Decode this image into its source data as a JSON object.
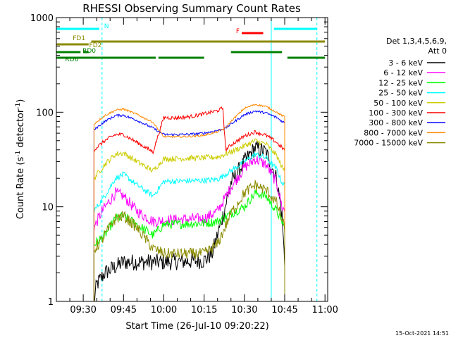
{
  "chart_data": {
    "type": "line",
    "title": "RHESSI Observing Summary Count Rates",
    "xlabel": "Start Time (26-Jul-10 09:20:22)",
    "ylabel_parts": [
      "Count Rate (s",
      "-1",
      " detector",
      "-1",
      ")"
    ],
    "y_scale": "log",
    "ylim": [
      1,
      1000
    ],
    "y_ticks": [
      {
        "value": 1,
        "label": "1"
      },
      {
        "value": 10,
        "label": "10"
      },
      {
        "value": 100,
        "label": "100"
      },
      {
        "value": 1000,
        "label": "1000"
      }
    ],
    "x_range_minutes": [
      "09:20",
      "11:01"
    ],
    "x_ticks": [
      "09:30",
      "09:45",
      "10:00",
      "10:15",
      "10:30",
      "10:45",
      "11:00"
    ],
    "grid": false,
    "legend_title": [
      "Det 1,3,4,5,6,9,",
      "Att 0"
    ],
    "legend_position": "right",
    "series": [
      {
        "name": "3 - 6 keV",
        "color": "#000000",
        "points": [
          [
            "09:34",
            1
          ],
          [
            "09:35",
            1.5
          ],
          [
            "09:38",
            2
          ],
          [
            "09:45",
            2.6
          ],
          [
            "09:58",
            2.6
          ],
          [
            "10:00",
            2.6
          ],
          [
            "10:15",
            2.7
          ],
          [
            "10:18",
            3.2
          ],
          [
            "10:22",
            8
          ],
          [
            "10:25",
            18
          ],
          [
            "10:30",
            30
          ],
          [
            "10:34",
            42
          ],
          [
            "10:38",
            38
          ],
          [
            "10:42",
            20
          ],
          [
            "10:44",
            8
          ],
          [
            "10:45",
            2.5
          ]
        ]
      },
      {
        "name": "6 - 12 keV",
        "color": "#ff00ff",
        "points": [
          [
            "09:34",
            6
          ],
          [
            "09:37",
            9
          ],
          [
            "09:42",
            14
          ],
          [
            "09:45",
            13
          ],
          [
            "09:50",
            9
          ],
          [
            "09:56",
            7
          ],
          [
            "10:00",
            7.2
          ],
          [
            "10:15",
            7.5
          ],
          [
            "10:20",
            9
          ],
          [
            "10:25",
            16
          ],
          [
            "10:30",
            26
          ],
          [
            "10:34",
            32
          ],
          [
            "10:38",
            28
          ],
          [
            "10:42",
            18
          ],
          [
            "10:44",
            10
          ],
          [
            "10:45",
            9
          ]
        ]
      },
      {
        "name": "12 - 25 keV",
        "color": "#00ff00",
        "points": [
          [
            "09:34",
            4
          ],
          [
            "09:38",
            5
          ],
          [
            "09:42",
            7.5
          ],
          [
            "09:45",
            8
          ],
          [
            "09:50",
            6.5
          ],
          [
            "09:56",
            5
          ],
          [
            "10:00",
            6.5
          ],
          [
            "10:15",
            6.7
          ],
          [
            "10:20",
            7
          ],
          [
            "10:25",
            8.5
          ],
          [
            "10:30",
            10
          ],
          [
            "10:34",
            14
          ],
          [
            "10:38",
            13
          ],
          [
            "10:42",
            9
          ],
          [
            "10:44",
            7
          ],
          [
            "10:45",
            6
          ]
        ]
      },
      {
        "name": "25 - 50 keV",
        "color": "#00ffff",
        "points": [
          [
            "09:34",
            9
          ],
          [
            "09:38",
            13
          ],
          [
            "09:42",
            20
          ],
          [
            "09:45",
            22
          ],
          [
            "09:50",
            17
          ],
          [
            "09:56",
            13
          ],
          [
            "10:00",
            18.5
          ],
          [
            "10:15",
            19
          ],
          [
            "10:20",
            19.5
          ],
          [
            "10:25",
            24
          ],
          [
            "10:30",
            30
          ],
          [
            "10:34",
            36
          ],
          [
            "10:38",
            33
          ],
          [
            "10:42",
            25
          ],
          [
            "10:44",
            18
          ],
          [
            "10:45",
            17
          ]
        ]
      },
      {
        "name": "50 - 100 keV",
        "color": "#cccc00",
        "points": [
          [
            "09:34",
            20
          ],
          [
            "09:38",
            28
          ],
          [
            "09:42",
            36
          ],
          [
            "09:45",
            37
          ],
          [
            "09:50",
            30
          ],
          [
            "09:56",
            24
          ],
          [
            "10:00",
            32
          ],
          [
            "10:15",
            33
          ],
          [
            "10:20",
            33.5
          ],
          [
            "10:25",
            38
          ],
          [
            "10:30",
            44
          ],
          [
            "10:34",
            50
          ],
          [
            "10:38",
            46
          ],
          [
            "10:42",
            35
          ],
          [
            "10:44",
            26
          ],
          [
            "10:45",
            24
          ]
        ]
      },
      {
        "name": "100 - 300 keV",
        "color": "#ff0000",
        "points": [
          [
            "09:34",
            40
          ],
          [
            "09:38",
            50
          ],
          [
            "09:42",
            58
          ],
          [
            "09:45",
            58
          ],
          [
            "09:50",
            48
          ],
          [
            "09:56",
            38
          ],
          [
            "10:00",
            88
          ],
          [
            "10:05",
            87
          ],
          [
            "10:10",
            90
          ],
          [
            "10:15",
            96
          ],
          [
            "10:20",
            104
          ],
          [
            "10:22",
            110
          ],
          [
            "10:23",
            40
          ],
          [
            "10:25",
            45
          ],
          [
            "10:30",
            56
          ],
          [
            "10:34",
            62
          ],
          [
            "10:38",
            57
          ],
          [
            "10:42",
            48
          ],
          [
            "10:44",
            42
          ],
          [
            "10:45",
            40
          ]
        ]
      },
      {
        "name": "300 - 800 keV",
        "color": "#0000ff",
        "points": [
          [
            "09:34",
            65
          ],
          [
            "09:38",
            80
          ],
          [
            "09:42",
            92
          ],
          [
            "09:45",
            93
          ],
          [
            "09:50",
            82
          ],
          [
            "09:56",
            68
          ],
          [
            "10:00",
            58
          ],
          [
            "10:05",
            58
          ],
          [
            "10:10",
            58.5
          ],
          [
            "10:15",
            60
          ],
          [
            "10:20",
            64
          ],
          [
            "10:23",
            68
          ],
          [
            "10:25",
            75
          ],
          [
            "10:30",
            94
          ],
          [
            "10:34",
            103
          ],
          [
            "10:38",
            98
          ],
          [
            "10:42",
            88
          ],
          [
            "10:44",
            80
          ],
          [
            "10:45",
            78
          ]
        ]
      },
      {
        "name": "800 - 7000 keV",
        "color": "#ff8800",
        "points": [
          [
            "09:34",
            75
          ],
          [
            "09:38",
            92
          ],
          [
            "09:42",
            105
          ],
          [
            "09:45",
            108
          ],
          [
            "09:50",
            95
          ],
          [
            "09:56",
            78
          ],
          [
            "10:00",
            55
          ],
          [
            "10:05",
            55
          ],
          [
            "10:10",
            55.5
          ],
          [
            "10:15",
            57
          ],
          [
            "10:20",
            62
          ],
          [
            "10:23",
            68
          ],
          [
            "10:25",
            80
          ],
          [
            "10:30",
            110
          ],
          [
            "10:34",
            121
          ],
          [
            "10:38",
            115
          ],
          [
            "10:42",
            100
          ],
          [
            "10:44",
            92
          ],
          [
            "10:45",
            90
          ]
        ]
      },
      {
        "name": "7000 - 15000 keV",
        "color": "#8b8b00",
        "points": [
          [
            "09:34",
            3.5
          ],
          [
            "09:37",
            4.5
          ],
          [
            "09:42",
            7.5
          ],
          [
            "09:45",
            8
          ],
          [
            "09:50",
            6
          ],
          [
            "09:56",
            3.6
          ],
          [
            "10:00",
            3.2
          ],
          [
            "10:15",
            3.2
          ],
          [
            "10:20",
            4
          ],
          [
            "10:25",
            8.5
          ],
          [
            "10:30",
            14
          ],
          [
            "10:34",
            17
          ],
          [
            "10:38",
            15
          ],
          [
            "10:42",
            11
          ],
          [
            "10:44",
            7
          ],
          [
            "10:45",
            6
          ]
        ]
      }
    ],
    "flag_bars": [
      {
        "label": "N",
        "color": "#00ffff",
        "segments": [
          [
            "09:20",
            "09:36"
          ],
          [
            "10:41",
            "10:57"
          ]
        ]
      },
      {
        "label": "F",
        "color": "#ff0000",
        "segments": [
          [
            "10:29",
            "10:37"
          ]
        ]
      },
      {
        "label": "FD1",
        "color": "#8b8b00",
        "segments": [
          [
            "09:20",
            "09:32"
          ]
        ]
      },
      {
        "label": "FD2",
        "color": "#8b8b00",
        "segments": [
          [
            "09:33",
            "11:00"
          ]
        ]
      },
      {
        "label": "RD0",
        "color": "#008000",
        "segments": [
          [
            "09:20",
            "09:29"
          ],
          [
            "09:30",
            "09:32"
          ],
          [
            "10:25",
            "10:44"
          ]
        ]
      },
      {
        "label": "RD6",
        "color": "#008000",
        "segments": [
          [
            "09:20",
            "09:37"
          ],
          [
            "09:37",
            "09:57"
          ],
          [
            "09:58",
            "10:15"
          ],
          [
            "10:46",
            "11:00"
          ]
        ]
      }
    ],
    "vertical_markers": [
      {
        "time": "09:20",
        "style": "solid"
      },
      {
        "time": "09:37",
        "style": "dashed"
      },
      {
        "time": "10:40",
        "style": "solid"
      },
      {
        "time": "10:57",
        "style": "dashed"
      }
    ]
  },
  "footer": {
    "timestamp": "15-Oct-2021 14:51"
  }
}
